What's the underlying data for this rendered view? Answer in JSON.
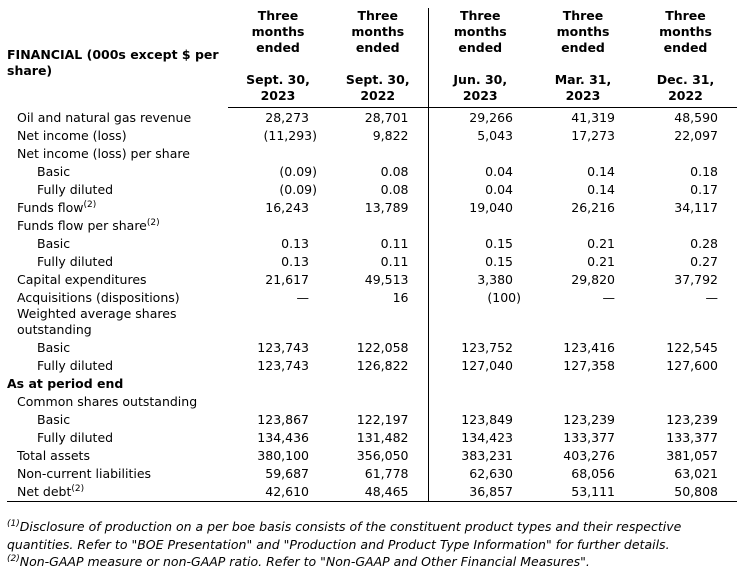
{
  "header": {
    "label": "FINANCIAL (000s except $ per share)",
    "columns": [
      {
        "period": "Three months ended",
        "date": "Sept. 30, 2023"
      },
      {
        "period": "Three months ended",
        "date": "Sept. 30, 2022"
      },
      {
        "period": "Three months ended",
        "date": "Jun. 30, 2023"
      },
      {
        "period": "Three months ended",
        "date": "Mar. 31, 2023"
      },
      {
        "period": "Three months ended",
        "date": "Dec. 31, 2022"
      }
    ]
  },
  "sections": [
    {
      "rows": [
        {
          "label": "Oil and natural gas revenue",
          "values": [
            "28,273",
            "28,701",
            "29,266",
            "41,319",
            "48,590"
          ]
        },
        {
          "label": "Net income (loss)",
          "values": [
            "(11,293)",
            "9,822",
            "5,043",
            "17,273",
            "22,097"
          ]
        },
        {
          "label": "Net income (loss) per share",
          "rows": [
            {
              "label": "Basic",
              "values": [
                "(0.09)",
                "0.08",
                "0.04",
                "0.14",
                "0.18"
              ]
            },
            {
              "label": "Fully diluted",
              "values": [
                "(0.09)",
                "0.08",
                "0.04",
                "0.14",
                "0.17"
              ]
            }
          ]
        },
        {
          "label": "Funds flow",
          "note": "(2)",
          "values": [
            "16,243",
            "13,789",
            "19,040",
            "26,216",
            "34,117"
          ]
        },
        {
          "label": "Funds flow per share",
          "note": "(2)",
          "rows": [
            {
              "label": "Basic",
              "values": [
                "0.13",
                "0.11",
                "0.15",
                "0.21",
                "0.28"
              ]
            },
            {
              "label": "Fully diluted",
              "values": [
                "0.13",
                "0.11",
                "0.15",
                "0.21",
                "0.27"
              ]
            }
          ]
        },
        {
          "label": "Capital expenditures",
          "values": [
            "21,617",
            "49,513",
            "3,380",
            "29,820",
            "37,792"
          ]
        },
        {
          "label": "Acquisitions (dispositions)",
          "values": [
            "—",
            "16",
            "(100)",
            "—",
            "—"
          ]
        },
        {
          "label": "Weighted average shares outstanding",
          "rows": [
            {
              "label": "Basic",
              "values": [
                "123,743",
                "122,058",
                "123,752",
                "123,416",
                "122,545"
              ]
            },
            {
              "label": "Fully diluted",
              "values": [
                "123,743",
                "126,822",
                "127,040",
                "127,358",
                "127,600"
              ]
            }
          ]
        }
      ]
    },
    {
      "title": "As at period end",
      "rows": [
        {
          "label": "Common shares outstanding",
          "rows": [
            {
              "label": "Basic",
              "values": [
                "123,867",
                "122,197",
                "123,849",
                "123,239",
                "123,239"
              ]
            },
            {
              "label": "Fully diluted",
              "values": [
                "134,436",
                "131,482",
                "134,423",
                "133,377",
                "133,377"
              ]
            }
          ]
        },
        {
          "label": "Total assets",
          "values": [
            "380,100",
            "356,050",
            "383,231",
            "403,276",
            "381,057"
          ]
        },
        {
          "label": "Non-current liabilities",
          "values": [
            "59,687",
            "61,778",
            "62,630",
            "68,056",
            "63,021"
          ]
        },
        {
          "label": "Net debt",
          "note": "(2)",
          "values": [
            "42,610",
            "48,465",
            "36,857",
            "53,111",
            "50,808"
          ]
        }
      ]
    }
  ],
  "footnotes": [
    {
      "mark": "(1)",
      "text": "Disclosure of production on a per boe basis consists of the constituent product types and their respective quantities. Refer to \"BOE Presentation\" and \"Production and Product Type Information\" for further details."
    },
    {
      "mark": "(2)",
      "text": "Non-GAAP measure or non-GAAP ratio. Refer to \"Non-GAAP and Other Financial Measures\"."
    }
  ]
}
